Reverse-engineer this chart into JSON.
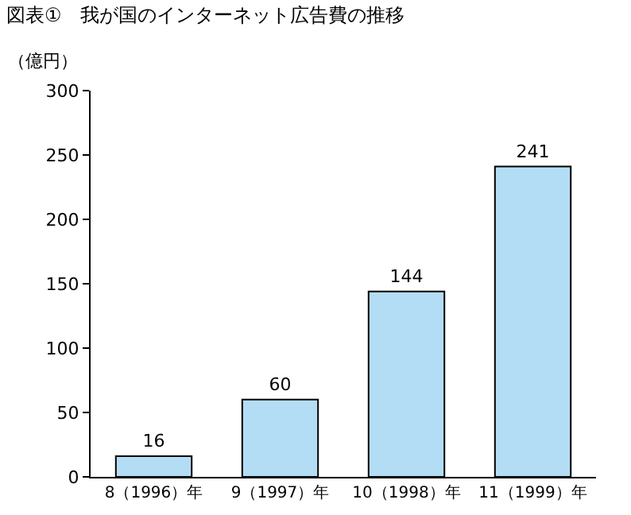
{
  "chart_data": {
    "type": "bar",
    "title": "図表①　我が国のインターネット広告費の推移",
    "ylabel": "（億円）",
    "categories": [
      "8（1996）年",
      "9（1997）年",
      "10（1998）年",
      "11（1999）年"
    ],
    "values": [
      16,
      60,
      144,
      241
    ],
    "color": "#b3ddf5",
    "ylim": [
      0,
      300
    ],
    "yticks": [
      0,
      50,
      100,
      150,
      200,
      250,
      300
    ],
    "grid": false,
    "data_labels": true
  }
}
